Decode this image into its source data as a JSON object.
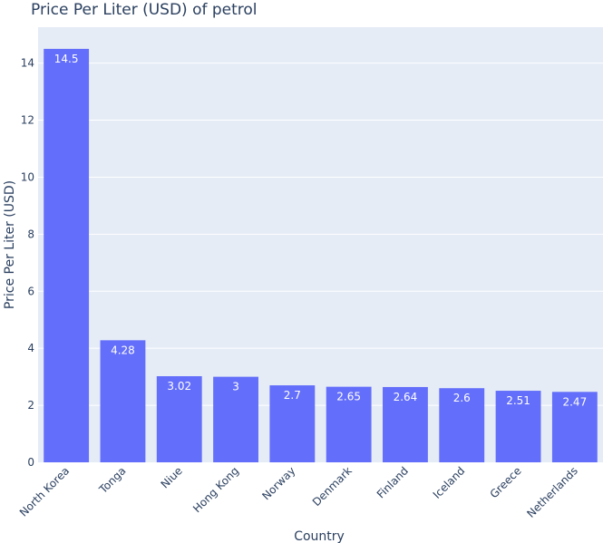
{
  "chart_data": {
    "type": "bar",
    "title": "Price Per Liter (USD) of petrol",
    "xlabel": "Country",
    "ylabel": "Price Per Liter (USD)",
    "categories": [
      "North Korea",
      "Tonga",
      "Niue",
      "Hong Kong",
      "Norway",
      "Denmark",
      "Finland",
      "Iceland",
      "Greece",
      "Netherlands"
    ],
    "values": [
      14.5,
      4.28,
      3.02,
      3,
      2.7,
      2.65,
      2.64,
      2.6,
      2.51,
      2.47
    ],
    "value_labels": [
      "14.5",
      "4.28",
      "3.02",
      "3",
      "2.7",
      "2.65",
      "2.64",
      "2.6",
      "2.51",
      "2.47"
    ],
    "ylim": [
      0,
      15.26
    ],
    "yticks": [
      0,
      2,
      4,
      6,
      8,
      10,
      12,
      14
    ],
    "grid": true,
    "bar_color": "#636efa",
    "plot_background": "#e5ecf6"
  }
}
